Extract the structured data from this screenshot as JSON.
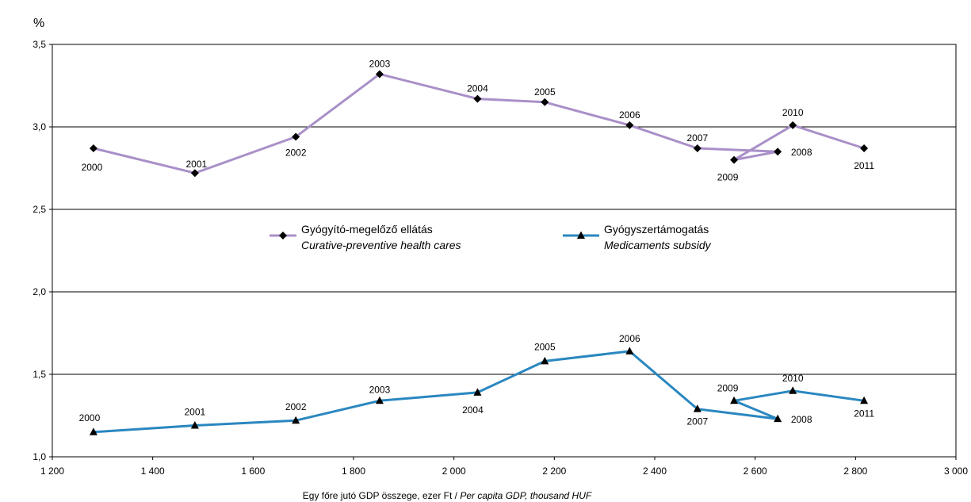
{
  "chart_data": {
    "type": "line",
    "y_unit": "%",
    "xlim": [
      1200,
      3000
    ],
    "ylim": [
      1.0,
      3.5
    ],
    "x_ticks": [
      1200,
      1400,
      1600,
      1800,
      2000,
      2200,
      2400,
      2600,
      2800,
      3000
    ],
    "x_tick_labels": [
      "1 200",
      "1 400",
      "1 600",
      "1 800",
      "2 000",
      "2 200",
      "2 400",
      "2 600",
      "2 800",
      "3 000"
    ],
    "y_ticks": [
      1.0,
      1.5,
      2.0,
      2.5,
      3.0,
      3.5
    ],
    "y_tick_labels": [
      "1,0",
      "1,5",
      "2,0",
      "2,5",
      "3,0",
      "3,5"
    ],
    "grid": "horizontal",
    "xlabel": "Egy főre jutó GDP összege, ezer Ft",
    "xlabel_en": "Per capita GDP, thousand HUF",
    "xlabel_sep": " / ",
    "series": [
      {
        "name": "Gyógyító-megelőző ellátás",
        "name_en": "Curative-preventive health cares",
        "color": "#a990c8",
        "marker": "diamond",
        "labels": [
          "2000",
          "2001",
          "2002",
          "2003",
          "2004",
          "2005",
          "2006",
          "2007",
          "2008",
          "2009",
          "2010",
          "2011"
        ],
        "x": [
          1282,
          1484,
          1685,
          1852,
          2047,
          2181,
          2350,
          2485,
          2645,
          2558,
          2675,
          2817
        ],
        "y": [
          2.87,
          2.72,
          2.94,
          3.32,
          3.17,
          3.15,
          3.01,
          2.87,
          2.85,
          2.8,
          3.01,
          2.87
        ]
      },
      {
        "name": "Gyógyszertámogatás",
        "name_en": "Medicaments subsidy",
        "color": "#2a87c0",
        "marker": "triangle",
        "labels": [
          "2000",
          "2001",
          "2002",
          "2003",
          "2004",
          "2005",
          "2006",
          "2007",
          "2008",
          "2009",
          "2010",
          "2011"
        ],
        "x": [
          1282,
          1484,
          1685,
          1852,
          2047,
          2181,
          2350,
          2485,
          2645,
          2558,
          2675,
          2817
        ],
        "y": [
          1.15,
          1.19,
          1.22,
          1.34,
          1.39,
          1.58,
          1.64,
          1.29,
          1.23,
          1.34,
          1.4,
          1.34
        ]
      }
    ],
    "legend": "center"
  }
}
